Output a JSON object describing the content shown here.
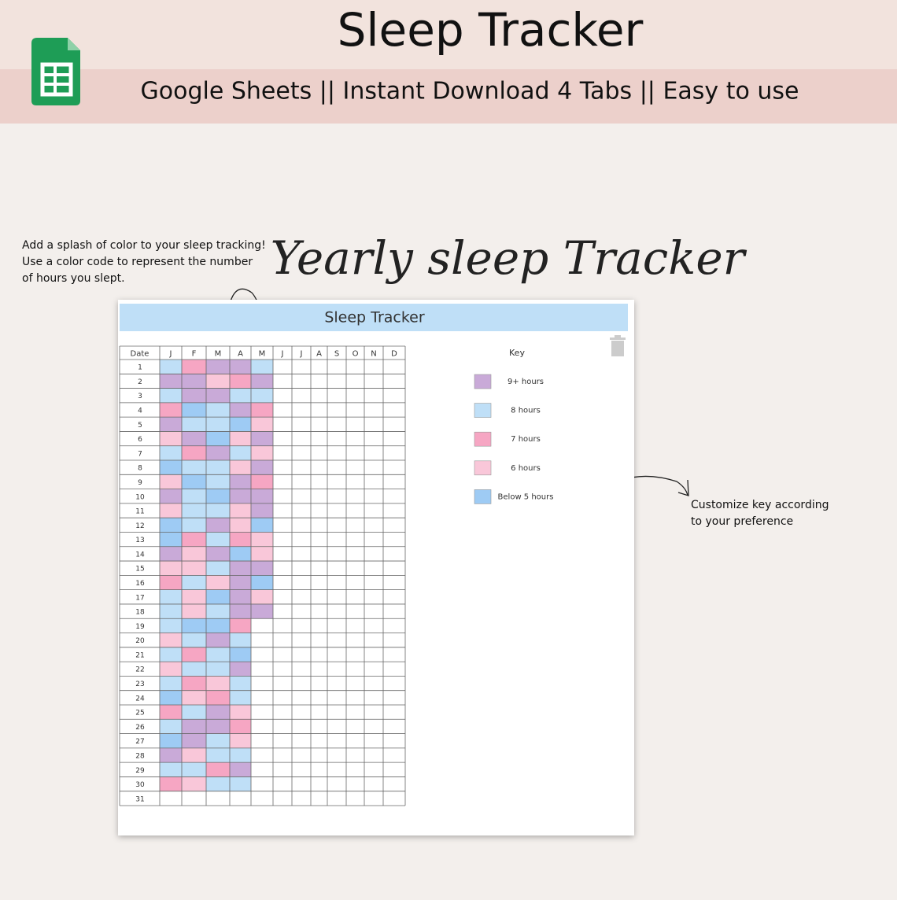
{
  "header": {
    "title": "Sleep Tracker",
    "subtitle": "Google Sheets || Instant Download 4 Tabs || Easy to use"
  },
  "annotations": {
    "left": [
      "Add a splash of color to your sleep tracking!",
      "Use a color code to represent the number",
      "of hours you slept."
    ],
    "script_title": "Yearly sleep Tracker",
    "right": [
      "Customize key according",
      "to your preference"
    ]
  },
  "sheet": {
    "title": "Sleep Tracker",
    "date_header": "Date",
    "months": [
      "J",
      "F",
      "M",
      "A",
      "M",
      "J",
      "J",
      "A",
      "S",
      "O",
      "N",
      "D"
    ],
    "key_title": "Key",
    "key": [
      {
        "label": "9+ hours",
        "color": "#c9aad8"
      },
      {
        "label": "8 hours",
        "color": "#bfdff7"
      },
      {
        "label": "7 hours",
        "color": "#f6a6c3"
      },
      {
        "label": "6 hours",
        "color": "#f9c7d9"
      },
      {
        "label": "Below 5 hours",
        "color": "#9ecbf4"
      }
    ],
    "rows": [
      {
        "date": "1",
        "cells": [
          1,
          2,
          0,
          0,
          1
        ]
      },
      {
        "date": "2",
        "cells": [
          0,
          0,
          3,
          2,
          0
        ]
      },
      {
        "date": "3",
        "cells": [
          1,
          0,
          0,
          1,
          1
        ]
      },
      {
        "date": "4",
        "cells": [
          2,
          4,
          1,
          0,
          2
        ]
      },
      {
        "date": "5",
        "cells": [
          0,
          1,
          1,
          4,
          3
        ]
      },
      {
        "date": "6",
        "cells": [
          3,
          0,
          4,
          3,
          0
        ]
      },
      {
        "date": "7",
        "cells": [
          1,
          2,
          0,
          1,
          3
        ]
      },
      {
        "date": "8",
        "cells": [
          4,
          1,
          1,
          3,
          0
        ]
      },
      {
        "date": "9",
        "cells": [
          3,
          4,
          1,
          0,
          2
        ]
      },
      {
        "date": "10",
        "cells": [
          0,
          1,
          4,
          0,
          0
        ]
      },
      {
        "date": "11",
        "cells": [
          3,
          1,
          1,
          3,
          0
        ]
      },
      {
        "date": "12",
        "cells": [
          4,
          1,
          0,
          3,
          4
        ]
      },
      {
        "date": "13",
        "cells": [
          4,
          2,
          1,
          2,
          3
        ]
      },
      {
        "date": "14",
        "cells": [
          0,
          3,
          0,
          4,
          3
        ]
      },
      {
        "date": "15",
        "cells": [
          3,
          3,
          1,
          0,
          0
        ]
      },
      {
        "date": "16",
        "cells": [
          2,
          1,
          3,
          0,
          4
        ]
      },
      {
        "date": "17",
        "cells": [
          1,
          3,
          4,
          0,
          3
        ]
      },
      {
        "date": "18",
        "cells": [
          1,
          3,
          1,
          0,
          0
        ]
      },
      {
        "date": "19",
        "cells": [
          1,
          4,
          4,
          2
        ]
      },
      {
        "date": "20",
        "cells": [
          3,
          1,
          0,
          1
        ]
      },
      {
        "date": "21",
        "cells": [
          1,
          2,
          1,
          4
        ]
      },
      {
        "date": "22",
        "cells": [
          3,
          1,
          1,
          0
        ]
      },
      {
        "date": "23",
        "cells": [
          1,
          2,
          3,
          1
        ]
      },
      {
        "date": "24",
        "cells": [
          4,
          3,
          2,
          1
        ]
      },
      {
        "date": "25",
        "cells": [
          2,
          1,
          0,
          3
        ]
      },
      {
        "date": "26",
        "cells": [
          1,
          0,
          0,
          2
        ]
      },
      {
        "date": "27",
        "cells": [
          4,
          0,
          1,
          3
        ]
      },
      {
        "date": "28",
        "cells": [
          0,
          3,
          1,
          1
        ]
      },
      {
        "date": "29",
        "cells": [
          1,
          1,
          2,
          0
        ]
      },
      {
        "date": "30",
        "cells": [
          2,
          3,
          1,
          1
        ]
      },
      {
        "date": "31",
        "cells": []
      }
    ]
  }
}
